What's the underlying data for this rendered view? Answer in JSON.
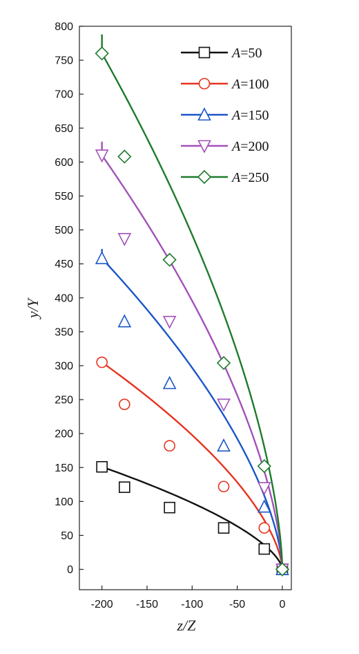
{
  "chart_data": {
    "type": "line",
    "xlabel": "z/Z",
    "ylabel": "y/Y",
    "xlim": [
      -225,
      10
    ],
    "ylim": [
      -30,
      800
    ],
    "x_ticks": [
      -200,
      -150,
      -100,
      -50,
      0
    ],
    "y_ticks": [
      0,
      50,
      100,
      150,
      200,
      250,
      300,
      350,
      400,
      450,
      500,
      550,
      600,
      650,
      700,
      750,
      800
    ],
    "legend_position": "top-right",
    "series": [
      {
        "name": "A=50",
        "name_parts": [
          "A",
          "=50"
        ],
        "color": "#111111",
        "marker": "square",
        "x": [
          -200,
          -175,
          -125,
          -65,
          -20,
          0
        ],
        "y": [
          151,
          121,
          91,
          61,
          30,
          0
        ],
        "curve_top_y": 151
      },
      {
        "name": "A=100",
        "name_parts": [
          "A",
          "=100"
        ],
        "color": "#e8321e",
        "marker": "circle",
        "x": [
          -200,
          -175,
          -125,
          -65,
          -20,
          0
        ],
        "y": [
          305,
          243,
          182,
          122,
          61,
          0
        ],
        "curve_top_y": 305
      },
      {
        "name": "A=150",
        "name_parts": [
          "A",
          "=150"
        ],
        "color": "#1a56c8",
        "marker": "triangle-up",
        "x": [
          -200,
          -175,
          -125,
          -65,
          -20,
          0
        ],
        "y": [
          458,
          365,
          274,
          182,
          92,
          0
        ],
        "curve_top_y": 472
      },
      {
        "name": "A=200",
        "name_parts": [
          "A",
          "=200"
        ],
        "color": "#a251b8",
        "marker": "triangle-down",
        "x": [
          -200,
          -175,
          -125,
          -65,
          -20,
          0
        ],
        "y": [
          610,
          487,
          365,
          243,
          120,
          0
        ],
        "curve_top_y": 630
      },
      {
        "name": "A=250",
        "name_parts": [
          "A",
          "=250"
        ],
        "color": "#1e7a2c",
        "marker": "diamond",
        "x": [
          -200,
          -175,
          -125,
          -65,
          -20,
          0
        ],
        "y": [
          760,
          608,
          456,
          304,
          152,
          0
        ],
        "curve_top_y": 788
      }
    ]
  }
}
